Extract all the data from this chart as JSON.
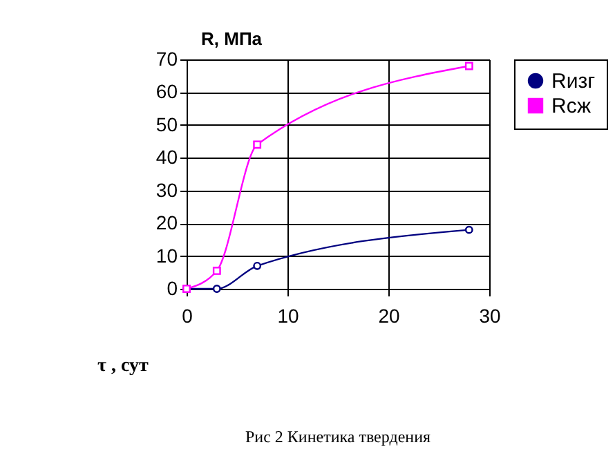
{
  "chart_data": {
    "type": "line",
    "xlabel": "τ , сут",
    "ylabel": "R, МПа",
    "annotations": [
      "Рис 2  Кинетика твердения"
    ],
    "x": [
      0,
      3,
      7,
      28
    ],
    "series": [
      {
        "name": "Rизг",
        "color": "#000080",
        "marker": "circle",
        "values": [
          0,
          0,
          7,
          18
        ]
      },
      {
        "name": "Rсж",
        "color": "#ff00ff",
        "marker": "square",
        "values": [
          0,
          5.5,
          44,
          68
        ]
      }
    ],
    "xlim": [
      0,
      30
    ],
    "xticks": [
      0,
      10,
      20,
      30
    ],
    "ylim": [
      0,
      70
    ],
    "yticks": [
      0,
      10,
      20,
      30,
      40,
      50,
      60,
      70
    ],
    "grid": true,
    "legend": "right"
  }
}
